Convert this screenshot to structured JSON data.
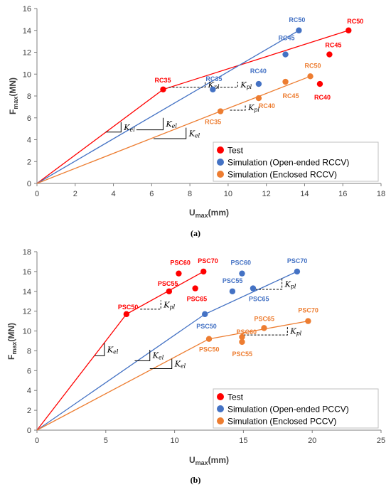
{
  "colors": {
    "test": "#ff0000",
    "open": "#4472c4",
    "enclosed": "#ed7d31",
    "axis": "#7f7f7f",
    "grid": "#d9d9d9",
    "text": "#404040"
  },
  "chart_data": [
    {
      "type": "scatter",
      "panel_label": "(a)",
      "ylabel_main": "F",
      "ylabel_sub": "max",
      "ylabel_unit": "(MN)",
      "xlabel_main": "U",
      "xlabel_sub": "max",
      "xlabel_unit": "(mm)",
      "xlim": [
        0,
        18
      ],
      "ylim": [
        0,
        16
      ],
      "xticks": [
        0,
        2,
        4,
        6,
        8,
        10,
        12,
        14,
        16,
        18
      ],
      "yticks": [
        0,
        2,
        4,
        6,
        8,
        10,
        12,
        14,
        16
      ],
      "grid": false,
      "legend_position": "bottom-right",
      "legend": [
        "Test",
        "Simulation (Open-ended RCCV)",
        "Simulation (Enclosed RCCV)"
      ],
      "series": [
        {
          "name": "Test",
          "color": "#ff0000",
          "points": [
            {
              "x": 6.6,
              "y": 8.6,
              "label": "RC35"
            },
            {
              "x": 15.3,
              "y": 11.8,
              "label": "RC45"
            },
            {
              "x": 16.3,
              "y": 14.0,
              "label": "RC50"
            },
            {
              "x": 14.8,
              "y": 9.1,
              "label": "RC40"
            }
          ],
          "lines": [
            [
              [
                0,
                0
              ],
              [
                6.6,
                8.6
              ],
              [
                16.3,
                14.0
              ]
            ]
          ]
        },
        {
          "name": "Simulation (Open-ended RCCV)",
          "color": "#4472c4",
          "points": [
            {
              "x": 9.2,
              "y": 8.6,
              "label": "RC35"
            },
            {
              "x": 11.6,
              "y": 9.1,
              "label": "RC40"
            },
            {
              "x": 13.0,
              "y": 11.8,
              "label": "RC45"
            },
            {
              "x": 13.7,
              "y": 14.0,
              "label": "RC50"
            }
          ],
          "lines": [
            [
              [
                0,
                0
              ],
              [
                13.7,
                14.0
              ]
            ]
          ]
        },
        {
          "name": "Simulation (Enclosed RCCV)",
          "color": "#ed7d31",
          "points": [
            {
              "x": 9.6,
              "y": 6.6,
              "label": "RC35"
            },
            {
              "x": 11.6,
              "y": 7.8,
              "label": "RC40"
            },
            {
              "x": 13.0,
              "y": 9.3,
              "label": "RC45"
            },
            {
              "x": 14.3,
              "y": 9.8,
              "label": "RC50"
            }
          ],
          "lines": [
            [
              [
                0,
                0
              ],
              [
                9.6,
                6.6
              ],
              [
                14.3,
                9.8
              ]
            ]
          ]
        }
      ],
      "annotations": {
        "Kel": [
          {
            "x1": 3.6,
            "y1": 4.7,
            "x2": 4.4,
            "y2": 5.6
          },
          {
            "x1": 5.2,
            "y1": 4.9,
            "x2": 6.6,
            "y2": 6.0
          },
          {
            "x1": 6.1,
            "y1": 4.1,
            "x2": 7.8,
            "y2": 5.1
          }
        ],
        "Kpl": [
          {
            "x1": 6.9,
            "y1": 8.8,
            "x2": 8.8,
            "y2": 9.3
          },
          {
            "x1": 9.4,
            "y1": 8.8,
            "x2": 10.5,
            "y2": 9.3
          },
          {
            "x1": 10.1,
            "y1": 6.7,
            "x2": 10.9,
            "y2": 7.2
          }
        ]
      }
    },
    {
      "type": "scatter",
      "panel_label": "(b)",
      "ylabel_main": "F",
      "ylabel_sub": "max",
      "ylabel_unit": "(MN)",
      "xlabel_main": "U",
      "xlabel_sub": "max",
      "xlabel_unit": "(mm)",
      "xlim": [
        0,
        25
      ],
      "ylim": [
        0,
        18
      ],
      "xticks": [
        0,
        5,
        10,
        15,
        20,
        25
      ],
      "yticks": [
        0,
        2,
        4,
        6,
        8,
        10,
        12,
        14,
        16,
        18
      ],
      "grid": false,
      "legend_position": "bottom-right",
      "legend": [
        "Test",
        "Simulation (Open-ended PCCV)",
        "Simulation (Enclosed PCCV)"
      ],
      "series": [
        {
          "name": "Test",
          "color": "#ff0000",
          "points": [
            {
              "x": 6.5,
              "y": 11.7,
              "label": "PSC50"
            },
            {
              "x": 9.6,
              "y": 14.0,
              "label": "PSC55"
            },
            {
              "x": 10.3,
              "y": 15.8,
              "label": "PSC60"
            },
            {
              "x": 11.5,
              "y": 14.3,
              "label": "PSC65"
            },
            {
              "x": 12.1,
              "y": 16.0,
              "label": "PSC70"
            }
          ],
          "lines": [
            [
              [
                0,
                0
              ],
              [
                6.5,
                11.7
              ],
              [
                12.1,
                16.0
              ]
            ]
          ]
        },
        {
          "name": "Simulation (Open-ended PCCV)",
          "color": "#4472c4",
          "points": [
            {
              "x": 12.2,
              "y": 11.7,
              "label": "PSC50"
            },
            {
              "x": 14.2,
              "y": 14.0,
              "label": "PSC55"
            },
            {
              "x": 14.9,
              "y": 15.8,
              "label": "PSC60"
            },
            {
              "x": 15.7,
              "y": 14.3,
              "label": "PSC65"
            },
            {
              "x": 18.9,
              "y": 16.0,
              "label": "PSC70"
            }
          ],
          "lines": [
            [
              [
                0,
                0
              ],
              [
                12.2,
                11.7
              ],
              [
                18.9,
                16.0
              ]
            ]
          ]
        },
        {
          "name": "Simulation (Enclosed PCCV)",
          "color": "#ed7d31",
          "points": [
            {
              "x": 12.5,
              "y": 9.2,
              "label": "PSC50"
            },
            {
              "x": 14.9,
              "y": 8.9,
              "label": "PSC55"
            },
            {
              "x": 14.9,
              "y": 9.4,
              "label": "PSC60"
            },
            {
              "x": 16.5,
              "y": 10.3,
              "label": "PSC65"
            },
            {
              "x": 19.7,
              "y": 11.0,
              "label": "PSC70"
            }
          ],
          "lines": [
            [
              [
                0,
                0
              ],
              [
                12.5,
                9.2
              ],
              [
                19.7,
                11.0
              ]
            ]
          ]
        }
      ],
      "annotations": {
        "Kel": [
          {
            "x1": 4.2,
            "y1": 7.5,
            "x2": 4.9,
            "y2": 8.8
          },
          {
            "x1": 7.1,
            "y1": 7.0,
            "x2": 8.2,
            "y2": 8.1
          },
          {
            "x1": 8.2,
            "y1": 6.2,
            "x2": 9.8,
            "y2": 7.2
          }
        ],
        "Kpl": [
          {
            "x1": 7.5,
            "y1": 12.2,
            "x2": 9.0,
            "y2": 13.1
          },
          {
            "x1": 15.6,
            "y1": 14.2,
            "x2": 17.8,
            "y2": 15.3
          },
          {
            "x1": 15.0,
            "y1": 9.6,
            "x2": 18.2,
            "y2": 10.4
          }
        ]
      }
    }
  ]
}
